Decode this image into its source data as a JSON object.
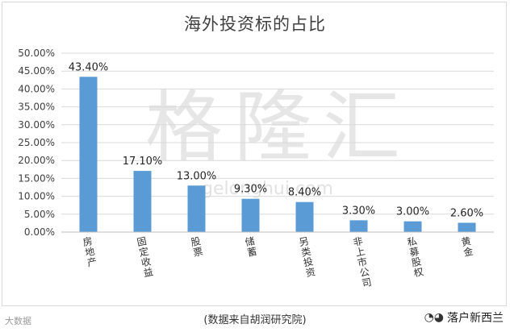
{
  "watermark": {
    "main_text": "格隆汇",
    "url_text": "gelonghui.com"
  },
  "source_note": "(数据来自胡润研究院)",
  "corner": {
    "left_text": "大数据",
    "right_text": "落户新西兰",
    "right_icon": "wechat-icon"
  },
  "colors": {
    "bar": "#5b9bd5",
    "grid": "#d9d9d9"
  },
  "chart_data": {
    "type": "bar",
    "title": "海外投资标的占比",
    "categories": [
      "房地产",
      "固定收益",
      "股票",
      "储蓄",
      "另类投资",
      "非上市公司",
      "私募股权",
      "黄金"
    ],
    "values": [
      43.4,
      17.1,
      13.0,
      9.3,
      8.4,
      3.3,
      3.0,
      2.6
    ],
    "value_labels": [
      "43.40%",
      "17.10%",
      "13.00%",
      "9.30%",
      "8.40%",
      "3.30%",
      "3.00%",
      "2.60%"
    ],
    "y_ticks": [
      "0.00%",
      "5.00%",
      "10.00%",
      "15.00%",
      "20.00%",
      "25.00%",
      "30.00%",
      "35.00%",
      "40.00%",
      "45.00%",
      "50.00%"
    ],
    "ylim": [
      0,
      50
    ],
    "grid": true,
    "legend": "none",
    "category_label_orientation": "vertical"
  }
}
